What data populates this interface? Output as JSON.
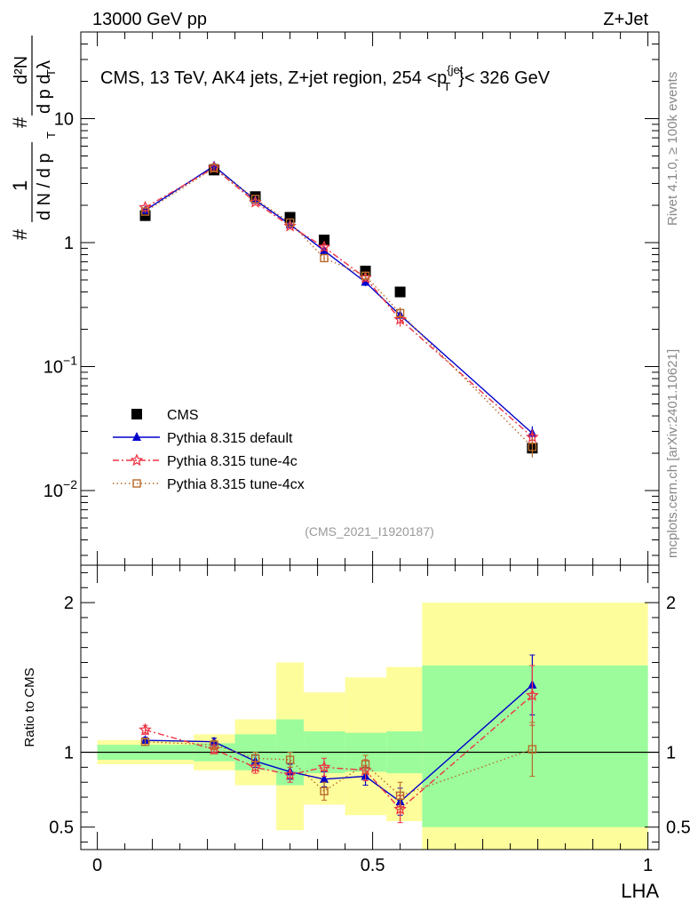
{
  "header": {
    "left": "13000 GeV pp",
    "right": "Z+Jet"
  },
  "colors": {
    "cms": "#000000",
    "default": "#0000cc",
    "tune4c": "#ee3344",
    "tune4cx": "#b86a2a",
    "band_inner": "#9cfc9c",
    "band_outer": "#fdfd9c"
  },
  "chart_data": [
    {
      "type": "scatter",
      "panel": "main",
      "title": "CMS, 13 TeV, AK4 jets, Z+jet region, 254 <p_T^{jet}> < 326 GeV",
      "title_parts": {
        "main": "CMS, 13 TeV, AK4 jets, Z+jet region, 254 <p",
        "sup": "{jet",
        "sub": "T",
        "after": "}< 326 GeV"
      },
      "ylabel": "1/(dN/dp_T) d²N/(dp_T dλ)",
      "ylabel_parts": {
        "one": "1",
        "dN": "d N / d p",
        "T": "T",
        "d2N": "d²N",
        "dpdl": "d p  d λ",
        "hash": "#"
      },
      "xlabel": "LHA",
      "yscale": "log",
      "xlim": [
        -0.03,
        1.02
      ],
      "ylim": [
        0.0025,
        50
      ],
      "yticks": [
        {
          "v": 0.01,
          "base": "10",
          "exp": "−2"
        },
        {
          "v": 0.1,
          "base": "10",
          "exp": "−1"
        },
        {
          "v": 1,
          "base": "1",
          "exp": ""
        },
        {
          "v": 10,
          "base": "10",
          "exp": ""
        }
      ],
      "watermark": "(CMS_2021_I1920187)",
      "side_labels": {
        "top": "Rivet 4.1.0, ≥ 100k events",
        "bottom": "mcplots.cern.ch [arXiv:2401.10621]"
      },
      "legend_position": "bottom-left",
      "series": [
        {
          "name": "CMS",
          "style": "square",
          "x": [
            0.087,
            0.212,
            0.287,
            0.35,
            0.412,
            0.487,
            0.55,
            0.79
          ],
          "y": [
            1.65,
            3.85,
            2.35,
            1.6,
            1.05,
            0.59,
            0.4,
            0.022
          ]
        },
        {
          "name": "Pythia 8.315 default",
          "style": "triangle",
          "x": [
            0.087,
            0.212,
            0.287,
            0.35,
            0.412,
            0.487,
            0.55,
            0.79
          ],
          "y": [
            1.82,
            4.15,
            2.2,
            1.4,
            0.86,
            0.48,
            0.26,
            0.029
          ],
          "err": [
            0.05,
            0.1,
            0.07,
            0.06,
            0.05,
            0.035,
            0.03,
            0.004
          ]
        },
        {
          "name": "Pythia 8.315 tune-4c",
          "style": "star",
          "x": [
            0.087,
            0.212,
            0.287,
            0.35,
            0.412,
            0.487,
            0.55,
            0.79
          ],
          "y": [
            1.92,
            4.0,
            2.12,
            1.36,
            0.92,
            0.52,
            0.24,
            0.027
          ],
          "err": [
            0.05,
            0.1,
            0.07,
            0.06,
            0.05,
            0.035,
            0.03,
            0.004
          ]
        },
        {
          "name": "Pythia 8.315 tune-4cx",
          "style": "opensquare",
          "x": [
            0.087,
            0.212,
            0.287,
            0.35,
            0.412,
            0.487,
            0.55,
            0.79
          ],
          "y": [
            1.78,
            4.0,
            2.25,
            1.45,
            0.75,
            0.54,
            0.27,
            0.0225
          ],
          "err": [
            0.05,
            0.1,
            0.07,
            0.06,
            0.05,
            0.035,
            0.03,
            0.004
          ]
        }
      ]
    },
    {
      "type": "scatter",
      "panel": "ratio",
      "ylabel": "Ratio to CMS",
      "xlabel": "LHA",
      "ylim": [
        0.35,
        2.25
      ],
      "xlim": [
        -0.03,
        1.02
      ],
      "yticks": [
        0.5,
        1,
        2
      ],
      "xticks": [
        0,
        0.5,
        1
      ],
      "xtick_labels": [
        "0",
        "0.5",
        "1"
      ],
      "yticklabels": [
        "0.5",
        "1",
        "2"
      ],
      "bands": [
        {
          "x0": 0.0,
          "x1": 0.175,
          "inner": [
            0.95,
            1.05
          ],
          "outer": [
            0.92,
            1.08
          ]
        },
        {
          "x0": 0.175,
          "x1": 0.25,
          "inner": [
            0.94,
            1.06
          ],
          "outer": [
            0.88,
            1.12
          ]
        },
        {
          "x0": 0.25,
          "x1": 0.325,
          "inner": [
            0.88,
            1.12
          ],
          "outer": [
            0.78,
            1.22
          ]
        },
        {
          "x0": 0.325,
          "x1": 0.375,
          "inner": [
            0.78,
            1.22
          ],
          "outer": [
            0.48,
            1.6
          ]
        },
        {
          "x0": 0.375,
          "x1": 0.45,
          "inner": [
            0.86,
            1.14
          ],
          "outer": [
            0.65,
            1.4
          ]
        },
        {
          "x0": 0.45,
          "x1": 0.525,
          "inner": [
            0.87,
            1.13
          ],
          "outer": [
            0.58,
            1.5
          ]
        },
        {
          "x0": 0.525,
          "x1": 0.59,
          "inner": [
            0.86,
            1.14
          ],
          "outer": [
            0.54,
            1.57
          ]
        },
        {
          "x0": 0.59,
          "x1": 1.0,
          "inner": [
            0.5,
            1.58
          ],
          "outer": [
            0.0,
            2.0
          ]
        }
      ],
      "series": [
        {
          "name": "Pythia 8.315 default",
          "style": "triangle",
          "x": [
            0.087,
            0.212,
            0.287,
            0.35,
            0.412,
            0.487,
            0.55,
            0.79
          ],
          "y": [
            1.08,
            1.07,
            0.94,
            0.87,
            0.82,
            0.84,
            0.67,
            1.45
          ],
          "err": [
            0.02,
            0.025,
            0.04,
            0.05,
            0.05,
            0.06,
            0.09,
            0.2
          ]
        },
        {
          "name": "Pythia 8.315 tune-4c",
          "style": "star",
          "x": [
            0.087,
            0.212,
            0.287,
            0.35,
            0.412,
            0.487,
            0.55,
            0.79
          ],
          "y": [
            1.15,
            1.02,
            0.9,
            0.85,
            0.9,
            0.88,
            0.62,
            1.38
          ],
          "err": [
            0.03,
            0.03,
            0.04,
            0.05,
            0.06,
            0.07,
            0.09,
            0.2
          ]
        },
        {
          "name": "Pythia 8.315 tune-4cx",
          "style": "opensquare",
          "x": [
            0.087,
            0.212,
            0.287,
            0.35,
            0.412,
            0.487,
            0.55,
            0.79
          ],
          "y": [
            1.07,
            1.05,
            0.96,
            0.95,
            0.74,
            0.92,
            0.71,
            1.02
          ],
          "err": [
            0.02,
            0.03,
            0.04,
            0.05,
            0.06,
            0.06,
            0.09,
            0.18
          ]
        }
      ]
    }
  ]
}
